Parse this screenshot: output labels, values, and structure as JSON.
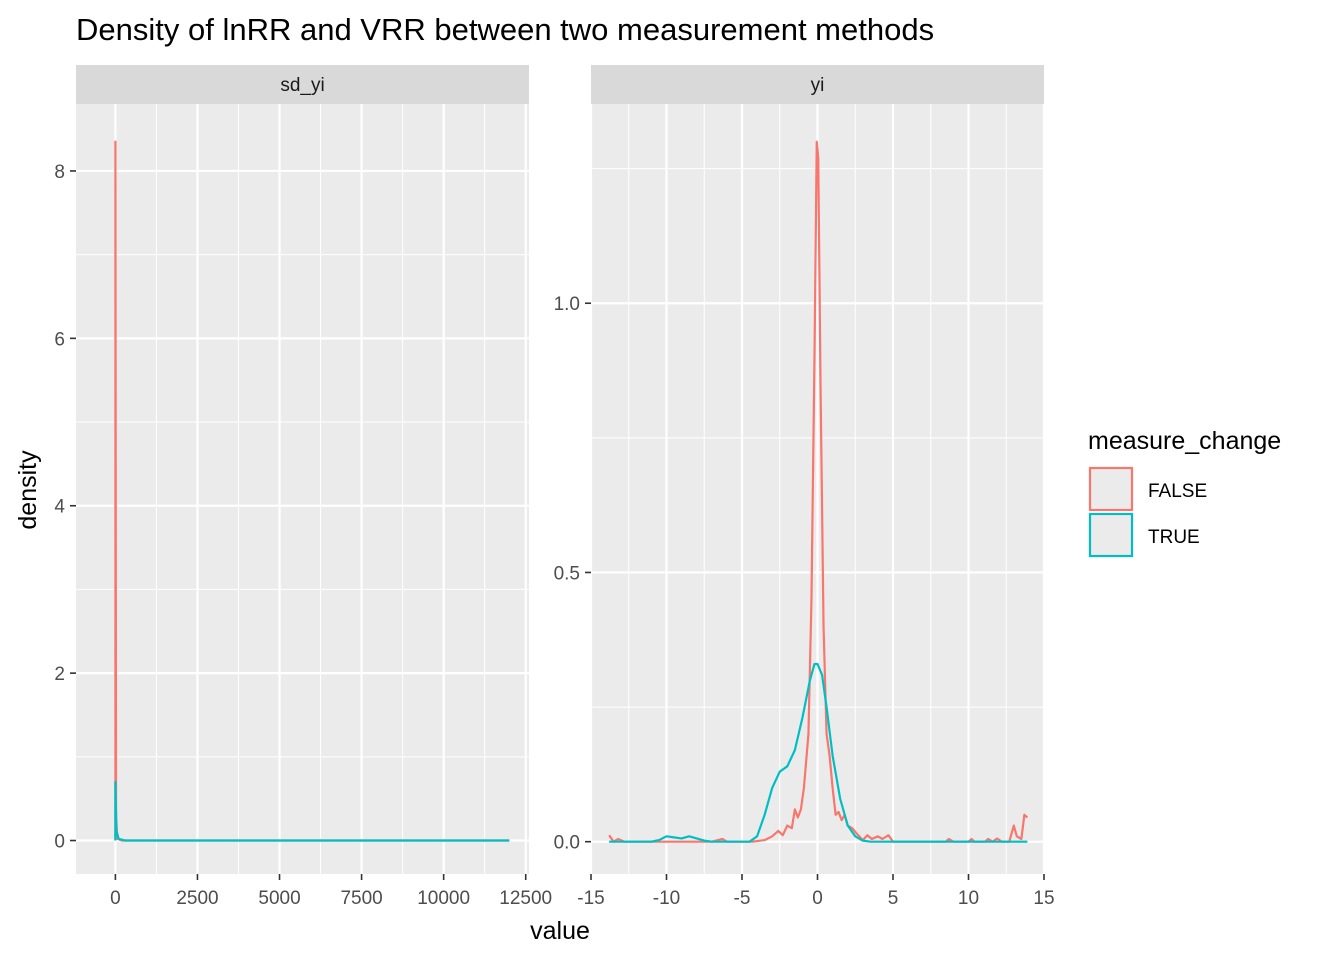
{
  "chart_data": {
    "type": "line",
    "title": "Density of lnRR and VRR between two measurement methods",
    "xlabel": "value",
    "ylabel": "density",
    "legend": {
      "title": "measure_change",
      "placement": "right",
      "entries": [
        {
          "name": "FALSE",
          "color": "#F8766D"
        },
        {
          "name": "TRUE",
          "color": "#00BFC4"
        }
      ]
    },
    "colors": {
      "panel_bg": "#EBEBEB",
      "strip_bg": "#D9D9D9",
      "grid": "#FFFFFF",
      "false_series": "#F8766D",
      "true_series": "#00BFC4"
    },
    "panels": [
      {
        "strip": "sd_yi",
        "xlim": [
          -1200,
          12600
        ],
        "ylim": [
          -0.4,
          8.8
        ],
        "x_ticks": [
          0,
          2500,
          5000,
          7500,
          10000,
          12500
        ],
        "x_tick_labels": [
          "0",
          "2500",
          "5000",
          "7500",
          "10000",
          "12500"
        ],
        "y_ticks": [
          0,
          2,
          4,
          6,
          8
        ],
        "y_tick_labels": [
          "0",
          "2",
          "4",
          "6",
          "8"
        ],
        "series": [
          {
            "name": "FALSE",
            "points": [
              [
                0,
                0.0
              ],
              [
                0,
                8.35
              ],
              [
                20,
                0.3
              ],
              [
                60,
                0.02
              ],
              [
                200,
                0.0
              ],
              [
                12000,
                0.0
              ]
            ]
          },
          {
            "name": "TRUE",
            "points": [
              [
                0,
                0.0
              ],
              [
                0,
                0.7
              ],
              [
                30,
                0.12
              ],
              [
                100,
                0.02
              ],
              [
                300,
                0.0
              ],
              [
                12000,
                0.0
              ]
            ]
          }
        ]
      },
      {
        "strip": "yi",
        "xlim": [
          -15,
          15
        ],
        "ylim": [
          -0.06,
          1.37
        ],
        "x_ticks": [
          -15,
          -10,
          -5,
          0,
          5,
          10,
          15
        ],
        "x_tick_labels": [
          "-15",
          "-10",
          "-5",
          "0",
          "5",
          "10",
          "15"
        ],
        "y_ticks": [
          0.0,
          0.5,
          1.0
        ],
        "y_tick_labels": [
          "0.0",
          "0.5",
          "1.0"
        ],
        "series": [
          {
            "name": "FALSE",
            "points": [
              [
                -13.8,
                0.012
              ],
              [
                -13.5,
                0.0
              ],
              [
                -13.2,
                0.005
              ],
              [
                -12.8,
                0.0
              ],
              [
                -7,
                0.0
              ],
              [
                -6.3,
                0.005
              ],
              [
                -6.0,
                0.0
              ],
              [
                -4.3,
                0.0
              ],
              [
                -3.5,
                0.003
              ],
              [
                -3.0,
                0.01
              ],
              [
                -2.6,
                0.02
              ],
              [
                -2.3,
                0.012
              ],
              [
                -2.0,
                0.03
              ],
              [
                -1.7,
                0.025
              ],
              [
                -1.5,
                0.06
              ],
              [
                -1.3,
                0.045
              ],
              [
                -1.1,
                0.06
              ],
              [
                -0.9,
                0.1
              ],
              [
                -0.6,
                0.2
              ],
              [
                -0.4,
                0.45
              ],
              [
                -0.2,
                0.9
              ],
              [
                -0.05,
                1.3
              ],
              [
                0.05,
                1.27
              ],
              [
                0.2,
                0.85
              ],
              [
                0.4,
                0.4
              ],
              [
                0.6,
                0.2
              ],
              [
                0.8,
                0.16
              ],
              [
                1.0,
                0.1
              ],
              [
                1.2,
                0.05
              ],
              [
                1.4,
                0.055
              ],
              [
                1.6,
                0.04
              ],
              [
                1.8,
                0.05
              ],
              [
                2.0,
                0.03
              ],
              [
                2.3,
                0.025
              ],
              [
                2.6,
                0.015
              ],
              [
                3.0,
                0.003
              ],
              [
                3.3,
                0.012
              ],
              [
                3.6,
                0.005
              ],
              [
                4.0,
                0.01
              ],
              [
                4.3,
                0.005
              ],
              [
                4.7,
                0.012
              ],
              [
                5.0,
                0.0
              ],
              [
                8.5,
                0.0
              ],
              [
                8.7,
                0.005
              ],
              [
                9.0,
                0.0
              ],
              [
                10.0,
                0.0
              ],
              [
                10.2,
                0.005
              ],
              [
                10.4,
                0.0
              ],
              [
                11.1,
                0.0
              ],
              [
                11.3,
                0.005
              ],
              [
                11.6,
                0.0
              ],
              [
                11.9,
                0.006
              ],
              [
                12.2,
                0.0
              ],
              [
                12.7,
                0.0
              ],
              [
                13.0,
                0.03
              ],
              [
                13.2,
                0.01
              ],
              [
                13.5,
                0.005
              ],
              [
                13.7,
                0.05
              ],
              [
                13.9,
                0.045
              ]
            ]
          },
          {
            "name": "TRUE",
            "points": [
              [
                -13.8,
                0.0
              ],
              [
                -11.0,
                0.0
              ],
              [
                -10.5,
                0.003
              ],
              [
                -10.0,
                0.01
              ],
              [
                -9.5,
                0.008
              ],
              [
                -9.0,
                0.006
              ],
              [
                -8.5,
                0.01
              ],
              [
                -8.0,
                0.006
              ],
              [
                -7.5,
                0.002
              ],
              [
                -7.0,
                0.0
              ],
              [
                -4.5,
                0.0
              ],
              [
                -4.0,
                0.01
              ],
              [
                -3.5,
                0.05
              ],
              [
                -3.0,
                0.1
              ],
              [
                -2.5,
                0.13
              ],
              [
                -2.0,
                0.14
              ],
              [
                -1.5,
                0.17
              ],
              [
                -1.0,
                0.23
              ],
              [
                -0.5,
                0.3
              ],
              [
                -0.2,
                0.33
              ],
              [
                0.0,
                0.33
              ],
              [
                0.3,
                0.31
              ],
              [
                0.6,
                0.25
              ],
              [
                1.0,
                0.16
              ],
              [
                1.5,
                0.08
              ],
              [
                2.0,
                0.03
              ],
              [
                2.5,
                0.01
              ],
              [
                3.0,
                0.002
              ],
              [
                3.5,
                0.0
              ],
              [
                13.9,
                0.0
              ]
            ]
          }
        ]
      }
    ]
  }
}
